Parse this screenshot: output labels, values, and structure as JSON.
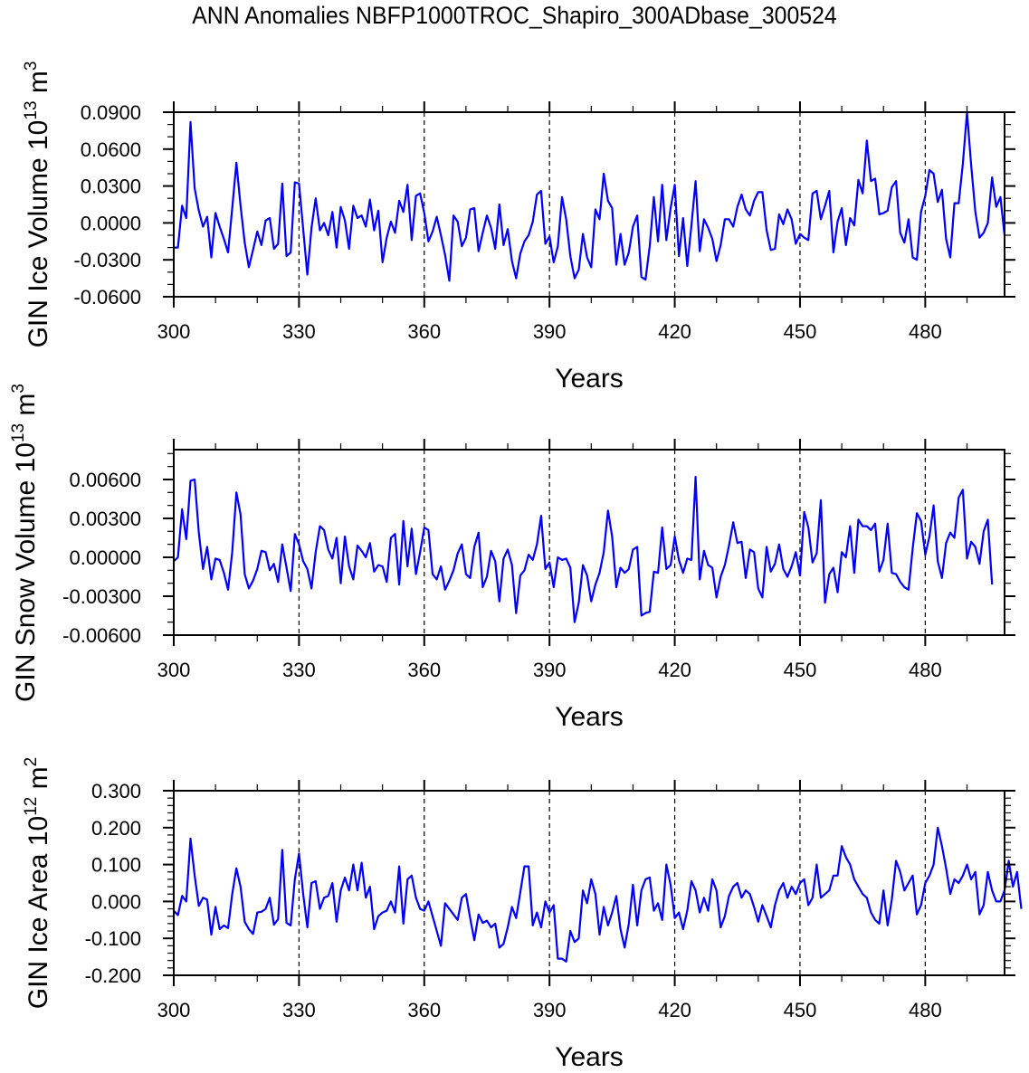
{
  "title": "ANN Anomalies NBFP1000TROC_Shapiro_300ADbase_300524",
  "chart_data": [
    {
      "type": "line",
      "title": "",
      "xlabel": "Years",
      "ylabel": "GIN Ice Volume 10",
      "ylabel_exp": "13",
      "ylabel_unit": " m",
      "ylabel_unit_exp": "3",
      "xlim": [
        300,
        499
      ],
      "ylim": [
        -0.06,
        0.09
      ],
      "xticks": [
        300,
        330,
        360,
        390,
        420,
        450,
        480
      ],
      "xtick_labels": [
        "300",
        "330",
        "360",
        "390",
        "420",
        "450",
        "480"
      ],
      "yticks": [
        -0.06,
        -0.03,
        0.0,
        0.03,
        0.06,
        0.09
      ],
      "ytick_labels": [
        "-0.0600",
        "-0.0300",
        "0.0000",
        "0.0300",
        "0.0600",
        "0.0900"
      ],
      "grid": "vertical dashed at major x ticks",
      "line_color": "#0000ff",
      "series": [
        {
          "name": "GIN Ice Volume",
          "x_start": 300,
          "x_step": 1,
          "values": [
            -0.02,
            -0.02,
            0.014,
            0.004,
            0.082,
            0.028,
            0.01,
            -0.003,
            0.005,
            -0.028,
            0.008,
            -0.003,
            -0.013,
            -0.024,
            0.012,
            0.049,
            0.014,
            -0.016,
            -0.036,
            -0.022,
            -0.007,
            -0.018,
            0.002,
            0.004,
            -0.021,
            -0.017,
            0.032,
            -0.027,
            -0.024,
            0.033,
            0.032,
            -0.005,
            -0.042,
            -0.004,
            0.02,
            -0.006,
            0.0,
            -0.01,
            0.009,
            -0.02,
            0.013,
            0.002,
            -0.021,
            0.014,
            0.004,
            0.006,
            -0.003,
            0.019,
            -0.006,
            0.01,
            -0.032,
            -0.012,
            0.001,
            -0.008,
            0.018,
            0.009,
            0.031,
            -0.014,
            0.022,
            0.024,
            0.008,
            -0.015,
            -0.007,
            0.005,
            -0.01,
            -0.026,
            -0.047,
            0.006,
            0.001,
            -0.019,
            -0.012,
            0.011,
            0.012,
            -0.023,
            -0.008,
            0.006,
            -0.004,
            -0.021,
            0.015,
            -0.018,
            -0.005,
            -0.031,
            -0.045,
            -0.025,
            -0.015,
            -0.01,
            0.001,
            0.023,
            0.026,
            -0.017,
            -0.011,
            -0.032,
            -0.019,
            0.021,
            0.003,
            -0.027,
            -0.045,
            -0.038,
            -0.009,
            -0.028,
            -0.036,
            0.011,
            0.003,
            0.04,
            0.018,
            0.012,
            -0.034,
            -0.009,
            -0.034,
            -0.024,
            -0.003,
            0.006,
            -0.044,
            -0.046,
            -0.019,
            0.021,
            -0.015,
            0.031,
            -0.014,
            0.012,
            0.031,
            -0.027,
            0.004,
            -0.035,
            -0.002,
            0.034,
            -0.023,
            0.003,
            -0.004,
            -0.013,
            -0.031,
            -0.018,
            0.003,
            0.003,
            -0.003,
            0.013,
            0.023,
            0.011,
            0.006,
            0.018,
            0.025,
            0.025,
            -0.006,
            -0.022,
            -0.021,
            0.007,
            -0.001,
            0.011,
            0.003,
            -0.017,
            -0.009,
            -0.012,
            -0.014,
            0.024,
            0.026,
            0.003,
            0.014,
            0.026,
            -0.024,
            0.001,
            0.012,
            -0.018,
            0.004,
            -0.002,
            0.035,
            0.024,
            0.067,
            0.034,
            0.036,
            0.007,
            0.008,
            0.01,
            0.029,
            0.034,
            -0.008,
            -0.016,
            0.003,
            -0.028,
            -0.03,
            0.009,
            0.022,
            0.043,
            0.04,
            0.017,
            0.027,
            -0.013,
            -0.028,
            0.016,
            0.016,
            0.048,
            0.09,
            0.047,
            0.009,
            -0.012,
            -0.008,
            0.0,
            0.037,
            0.013,
            0.021,
            -0.01
          ]
        }
      ]
    },
    {
      "type": "line",
      "title": "",
      "xlabel": "Years",
      "ylabel": "GIN Snow Volume 10",
      "ylabel_exp": "13",
      "ylabel_unit": " m",
      "ylabel_unit_exp": "3",
      "xlim": [
        300,
        499
      ],
      "ylim": [
        -0.006,
        0.0083
      ],
      "xticks": [
        300,
        330,
        360,
        390,
        420,
        450,
        480
      ],
      "xtick_labels": [
        "300",
        "330",
        "360",
        "390",
        "420",
        "450",
        "480"
      ],
      "yticks": [
        -0.006,
        -0.003,
        0.0,
        0.003,
        0.006
      ],
      "ytick_labels": [
        "-0.00600",
        "-0.00300",
        "0.00000",
        "0.00300",
        "0.00600"
      ],
      "grid": "vertical dashed at major x ticks",
      "line_color": "#0000ff",
      "series": [
        {
          "name": "GIN Snow Volume",
          "x_start": 300,
          "x_step": 1,
          "values": [
            -0.0003,
            0.0,
            0.0037,
            0.0014,
            0.0059,
            0.006,
            0.0019,
            -0.0009,
            0.0008,
            -0.0017,
            -0.0001,
            -0.0002,
            -0.0012,
            -0.0025,
            0.0004,
            0.005,
            0.0033,
            -0.0013,
            -0.0024,
            -0.0018,
            -0.0009,
            0.0005,
            0.0004,
            -0.001,
            -0.0005,
            -0.0019,
            0.001,
            -0.0008,
            -0.0026,
            0.0018,
            0.001,
            -0.0003,
            -0.0009,
            -0.0024,
            0.0004,
            0.0024,
            0.0021,
            0.0006,
            -0.0001,
            0.0015,
            -0.002,
            0.0016,
            -0.0007,
            -0.0017,
            0.0009,
            0.0005,
            0.0,
            0.0011,
            -0.0011,
            -0.0006,
            -0.0007,
            -0.0019,
            0.0015,
            0.0018,
            -0.0021,
            0.0028,
            -0.0007,
            0.0022,
            -0.0013,
            0.0004,
            0.0023,
            0.0021,
            -0.0013,
            -0.0017,
            -0.0007,
            -0.0025,
            -0.0018,
            -0.001,
            0.0003,
            0.001,
            -0.0013,
            -0.0016,
            0.0008,
            0.0019,
            -0.0023,
            -0.0015,
            0.0005,
            -0.0003,
            -0.0034,
            -0.0001,
            0.0006,
            -0.0006,
            -0.0043,
            -0.0014,
            -0.001,
            0.0002,
            -0.0002,
            0.001,
            0.0032,
            -0.0009,
            -0.0004,
            -0.0023,
            0.0,
            -0.0002,
            -0.0001,
            -0.0008,
            -0.005,
            -0.0035,
            -0.0006,
            -0.0014,
            -0.0034,
            -0.0021,
            -0.0012,
            0.0004,
            0.0036,
            0.0016,
            -0.0023,
            -0.0008,
            -0.0012,
            -0.0009,
            0.0006,
            0.0008,
            -0.0045,
            -0.0043,
            -0.0042,
            -0.0011,
            -0.0012,
            0.0023,
            -0.0009,
            -0.0006,
            0.0016,
            -0.0002,
            -0.0012,
            -0.0001,
            -0.0002,
            0.0062,
            -0.0017,
            0.0005,
            -0.0006,
            -0.0008,
            -0.0031,
            -0.0015,
            -0.0006,
            0.0009,
            0.0027,
            0.0011,
            0.0012,
            -0.0016,
            0.0006,
            0.0004,
            -0.0024,
            -0.0031,
            0.0008,
            -0.0011,
            -0.0005,
            0.001,
            -0.0009,
            -0.0015,
            -0.0007,
            0.0004,
            -0.0014,
            0.0035,
            0.0023,
            -0.0004,
            0.0003,
            0.0044,
            -0.0035,
            -0.0013,
            -0.0008,
            -0.0027,
            0.0004,
            0.0,
            0.0024,
            -0.0012,
            0.0029,
            0.0024,
            0.0024,
            0.0021,
            0.0026,
            -0.0011,
            -0.0002,
            0.0026,
            -0.0012,
            -0.0013,
            -0.0019,
            -0.0023,
            -0.0025,
            0.0007,
            0.0034,
            0.0028,
            0.0002,
            0.0016,
            0.004,
            -0.0003,
            -0.0016,
            0.0011,
            0.0019,
            0.0015,
            0.0046,
            0.0052,
            -0.0001,
            0.0012,
            0.0008,
            -0.0005,
            0.002,
            0.0029,
            -0.0021
          ]
        }
      ]
    },
    {
      "type": "line",
      "title": "",
      "xlabel": "Years",
      "ylabel": "GIN Ice Area 10",
      "ylabel_exp": "12",
      "ylabel_unit": " m",
      "ylabel_unit_exp": "2",
      "xlim": [
        300,
        499
      ],
      "ylim": [
        -0.2,
        0.3
      ],
      "xticks": [
        300,
        330,
        360,
        390,
        420,
        450,
        480
      ],
      "xtick_labels": [
        "300",
        "330",
        "360",
        "390",
        "420",
        "450",
        "480"
      ],
      "yticks": [
        -0.2,
        -0.1,
        0.0,
        0.1,
        0.2,
        0.3
      ],
      "ytick_labels": [
        "-0.200",
        "-0.100",
        "0.000",
        "0.100",
        "0.200",
        "0.300"
      ],
      "grid": "vertical dashed at major x ticks",
      "line_color": "#0000ff",
      "series": [
        {
          "name": "GIN Ice Area",
          "x_start": 300,
          "x_step": 1,
          "values": [
            -0.025,
            -0.037,
            0.015,
            0.0,
            0.17,
            0.07,
            -0.012,
            0.01,
            0.005,
            -0.09,
            -0.015,
            -0.075,
            -0.065,
            -0.072,
            0.02,
            0.09,
            0.04,
            -0.055,
            -0.075,
            -0.088,
            -0.03,
            -0.028,
            -0.02,
            0.01,
            -0.063,
            -0.048,
            0.14,
            -0.058,
            -0.065,
            0.06,
            0.13,
            0.02,
            -0.07,
            0.05,
            0.055,
            -0.02,
            0.01,
            0.015,
            0.05,
            -0.055,
            0.03,
            0.065,
            0.03,
            0.1,
            0.03,
            0.105,
            0.01,
            0.04,
            -0.075,
            -0.04,
            -0.03,
            -0.025,
            0.0,
            -0.03,
            0.095,
            -0.06,
            0.06,
            0.07,
            0.01,
            -0.02,
            -0.025,
            0.0,
            -0.04,
            -0.08,
            -0.12,
            -0.005,
            -0.02,
            -0.035,
            -0.05,
            0.01,
            0.02,
            -0.045,
            -0.105,
            -0.035,
            -0.058,
            -0.052,
            -0.07,
            -0.06,
            -0.125,
            -0.115,
            -0.07,
            -0.015,
            -0.045,
            0.025,
            0.095,
            0.095,
            -0.065,
            -0.03,
            -0.07,
            0.0,
            -0.03,
            -0.01,
            -0.155,
            -0.155,
            -0.163,
            -0.08,
            -0.11,
            -0.1,
            0.03,
            -0.005,
            0.06,
            0.02,
            -0.09,
            -0.015,
            -0.065,
            -0.03,
            0.015,
            -0.075,
            -0.125,
            -0.06,
            0.045,
            -0.065,
            0.03,
            0.06,
            0.065,
            -0.025,
            -0.005,
            -0.05,
            0.1,
            0.045,
            -0.045,
            -0.03,
            -0.075,
            -0.025,
            0.055,
            0.03,
            -0.03,
            0.01,
            -0.025,
            0.06,
            0.03,
            -0.07,
            -0.04,
            0.015,
            0.04,
            0.05,
            0.01,
            0.03,
            0.02,
            -0.015,
            -0.055,
            -0.01,
            -0.04,
            -0.07,
            -0.01,
            0.03,
            0.05,
            0.01,
            0.04,
            0.02,
            0.05,
            0.06,
            -0.01,
            0.01,
            0.1,
            0.01,
            0.02,
            0.03,
            0.07,
            0.07,
            0.15,
            0.12,
            0.1,
            0.06,
            0.04,
            0.02,
            0.01,
            -0.03,
            -0.05,
            -0.06,
            0.03,
            -0.065,
            0.005,
            0.11,
            0.08,
            0.03,
            0.05,
            0.07,
            -0.035,
            -0.01,
            0.05,
            0.07,
            0.1,
            0.2,
            0.15,
            0.09,
            0.02,
            0.06,
            0.05,
            0.07,
            0.1,
            0.06,
            0.08,
            -0.035,
            -0.01,
            0.08,
            0.03,
            0.0,
            0.0,
            0.03,
            0.11,
            0.04,
            0.08,
            -0.02
          ]
        }
      ]
    }
  ]
}
